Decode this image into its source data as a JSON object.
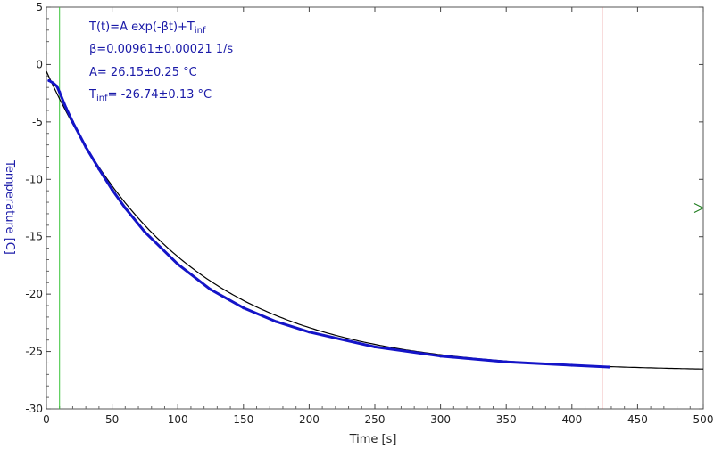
{
  "chart_data": {
    "type": "line",
    "xlabel": "Time [s]",
    "ylabel": "Temperature [C]",
    "xlim": [
      0,
      500
    ],
    "ylim": [
      -30,
      5
    ],
    "x_ticks": [
      "0",
      "50",
      "100",
      "150",
      "200",
      "250",
      "300",
      "350",
      "400",
      "450",
      "500"
    ],
    "y_ticks": [
      "5",
      "0",
      "-5",
      "-10",
      "-15",
      "-20",
      "-25",
      "-30"
    ],
    "grid": false,
    "fit": {
      "equation_main": "T(t)=A exp(-βt)+T",
      "equation_sub": "inf",
      "beta": "β=0.00961±0.00021 1/s",
      "amplitude": "A= 26.15±0.25 °C",
      "tinf_main": "T",
      "tinf_sub": "inf",
      "tinf_value": "= -26.74±0.13 °C",
      "A": 26.15,
      "beta_value": 0.00961,
      "T_inf": -26.74
    },
    "series": [
      {
        "name": "",
        "kind": "data",
        "color": "#1414c8",
        "x": [
          2,
          5,
          8,
          10,
          15,
          20,
          30,
          40,
          50,
          60,
          75,
          100,
          125,
          150,
          175,
          200,
          250,
          300,
          350,
          400,
          428
        ],
        "y": [
          -1.4,
          -1.6,
          -1.9,
          -2.4,
          -3.8,
          -5.0,
          -7.2,
          -9.1,
          -10.9,
          -12.5,
          -14.6,
          -17.4,
          -19.6,
          -21.2,
          -22.4,
          -23.3,
          -24.6,
          -25.4,
          -25.9,
          -26.2,
          -26.35
        ]
      },
      {
        "name": "",
        "kind": "fit",
        "color": "#000000",
        "x_range": [
          0,
          500
        ]
      }
    ],
    "markers": {
      "cursor_left_x": 10,
      "cursor_right_x": 423,
      "horizontal_y": -12.5,
      "left_color": "#39c439",
      "right_color": "#d42020",
      "horizontal_color": "#1a7a1a"
    },
    "text_color": "#1a1aa8"
  }
}
